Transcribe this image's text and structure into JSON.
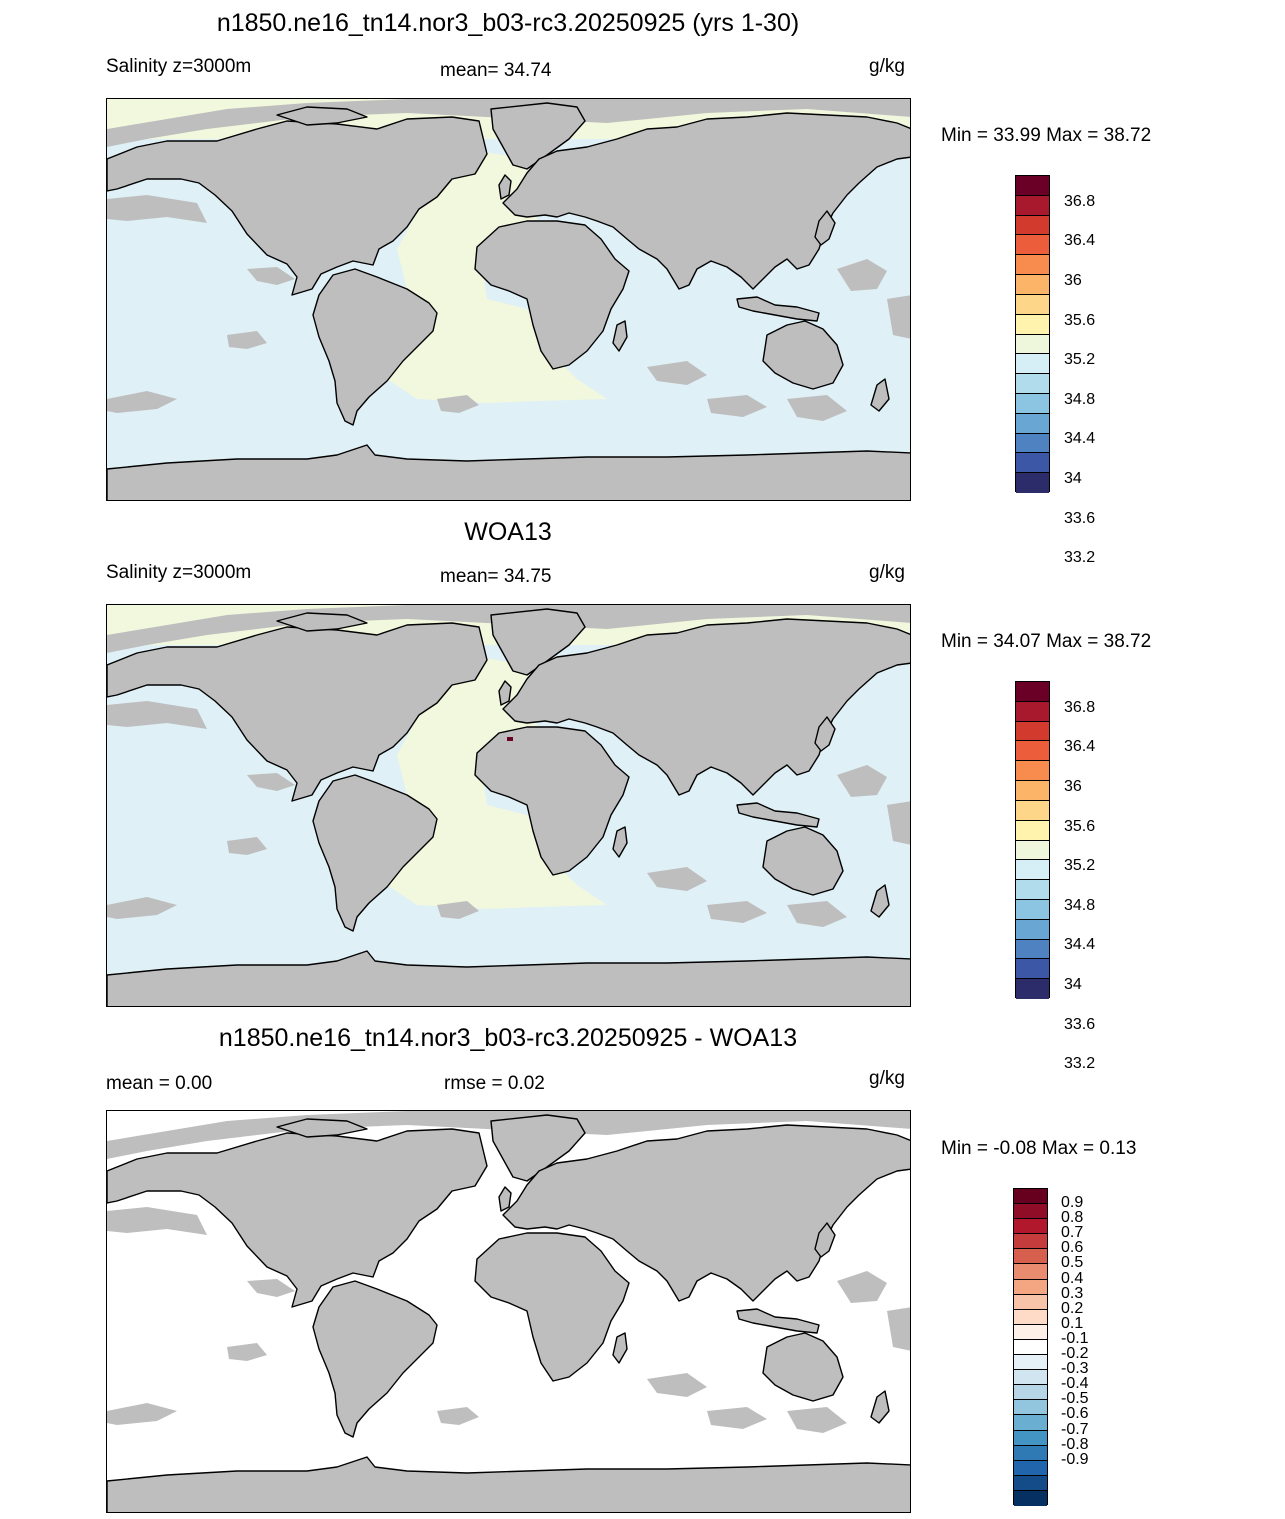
{
  "colors": {
    "land": "#bebebe",
    "coast": "#000000",
    "ocean_model": "#dff0f7",
    "ocean_obs": "#dff0f7",
    "atlantic_tint": "#f2f8dd",
    "diff_ocean": "#ffffff"
  },
  "panels": [
    {
      "title": "n1850.ne16_tn14.nor3_b03-rc3.20250925 (yrs 1-30)",
      "left_label": "Salinity z=3000m",
      "center_label": "mean=  34.74",
      "units": "g/kg",
      "minmax": "Min =  33.99 Max =  38.72",
      "palette": "salinity"
    },
    {
      "title": "WOA13",
      "left_label": "Salinity z=3000m",
      "center_label": "mean=  34.75",
      "units": "g/kg",
      "minmax": "Min =  34.07 Max =  38.72",
      "palette": "salinity"
    },
    {
      "title": "n1850.ne16_tn14.nor3_b03-rc3.20250925 - WOA13",
      "left_label": "mean =    0.00",
      "center_label": "rmse =   0.02",
      "units": "g/kg",
      "minmax": "Min =  -0.08 Max =    0.13",
      "palette": "diff"
    }
  ],
  "colorbars": {
    "salinity": {
      "colors": [
        "#6b0026",
        "#a8192e",
        "#d33a2e",
        "#ec5d3b",
        "#f88c4f",
        "#fbb468",
        "#fdd68a",
        "#fff3ad",
        "#eef7dc",
        "#d6eef5",
        "#b0dcec",
        "#8cc5e2",
        "#6aa6d3",
        "#4e82c0",
        "#3b57a5",
        "#2c2c6b"
      ],
      "labels": [
        "36.8",
        "36.4",
        "36",
        "35.6",
        "35.2",
        "34.8",
        "34.4",
        "34",
        "33.6",
        "33.2"
      ]
    },
    "diff": {
      "colors": [
        "#67001f",
        "#8f0d26",
        "#b2182b",
        "#c43c3c",
        "#d6604d",
        "#e88b6e",
        "#f4a582",
        "#f8c4a9",
        "#fddbc7",
        "#fdf0e8",
        "#ffffff",
        "#e6f1f7",
        "#d1e5f0",
        "#b6d6e8",
        "#92c5de",
        "#6aaed2",
        "#4393c3",
        "#2f79b5",
        "#2166ac",
        "#144c8a",
        "#053061"
      ],
      "labels": [
        "0.9",
        "0.8",
        "0.7",
        "0.6",
        "0.5",
        "0.4",
        "0.3",
        "0.2",
        "0.1",
        "-0.1",
        "-0.2",
        "-0.3",
        "-0.4",
        "-0.5",
        "-0.6",
        "-0.7",
        "-0.8",
        "-0.9"
      ]
    }
  }
}
